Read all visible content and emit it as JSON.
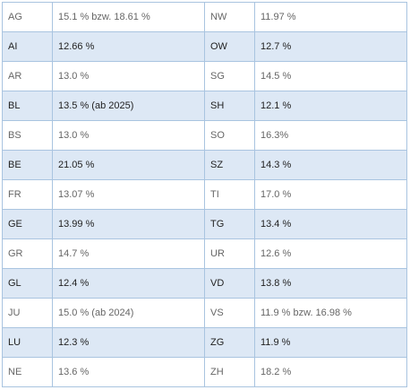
{
  "rows": [
    {
      "left_code": "AG",
      "left_rate": "15.1 % bzw. 18.61 %",
      "right_code": "NW",
      "right_rate": "11.97 %"
    },
    {
      "left_code": "AI",
      "left_rate": "12.66 %",
      "right_code": "OW",
      "right_rate": "12.7 %"
    },
    {
      "left_code": "AR",
      "left_rate": "13.0 %",
      "right_code": "SG",
      "right_rate": "14.5 %"
    },
    {
      "left_code": "BL",
      "left_rate": "13.5 % (ab 2025)",
      "right_code": "SH",
      "right_rate": "12.1 %"
    },
    {
      "left_code": "BS",
      "left_rate": "13.0 %",
      "right_code": "SO",
      "right_rate": "16.3%"
    },
    {
      "left_code": "BE",
      "left_rate": "21.05 %",
      "right_code": "SZ",
      "right_rate": "14.3 %"
    },
    {
      "left_code": "FR",
      "left_rate": "13.07 %",
      "right_code": "TI",
      "right_rate": "17.0 %"
    },
    {
      "left_code": "GE",
      "left_rate": "13.99 %",
      "right_code": "TG",
      "right_rate": "13.4 %"
    },
    {
      "left_code": "GR",
      "left_rate": "14.7 %",
      "right_code": "UR",
      "right_rate": "12.6 %"
    },
    {
      "left_code": "GL",
      "left_rate": "12.4 %",
      "right_code": "VD",
      "right_rate": "13.8 %"
    },
    {
      "left_code": "JU",
      "left_rate": "15.0 % (ab 2024)",
      "right_code": "VS",
      "right_rate": "11.9 % bzw. 16.98 %"
    },
    {
      "left_code": "LU",
      "left_rate": "12.3 %",
      "right_code": "ZG",
      "right_rate": "11.9 %"
    },
    {
      "left_code": "NE",
      "left_rate": "13.6 %",
      "right_code": "ZH",
      "right_rate": "18.2 %"
    }
  ]
}
